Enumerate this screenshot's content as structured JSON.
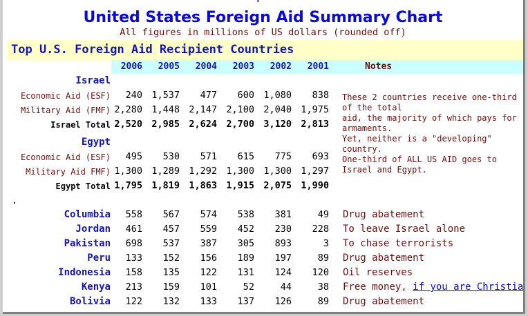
{
  "title": "United States Foreign Aid Summary Chart",
  "subtitle": "All figures in millions of US dollars (rounded off)",
  "section_title": "Top U.S. Foreign Aid Recipient Countries",
  "years": [
    "2006",
    "2005",
    "2004",
    "2003",
    "2002",
    "2001"
  ],
  "notes_header": "Notes",
  "separator": ".",
  "israel": {
    "name": "Israel",
    "rows": [
      {
        "label": "Economic Aid (ESF)",
        "values": [
          "240",
          "1,537",
          "477",
          "600",
          "1,080",
          "838"
        ],
        "total": false
      },
      {
        "label": "Military Aid (FMF)",
        "values": [
          "2,280",
          "1,448",
          "2,147",
          "2,100",
          "2,040",
          "1,975"
        ],
        "total": false
      },
      {
        "label": "Israel Total",
        "values": [
          "2,520",
          "2,985",
          "2,624",
          "2,700",
          "3,120",
          "2,813"
        ],
        "total": true
      }
    ]
  },
  "egypt": {
    "name": "Egypt",
    "rows": [
      {
        "label": "Economic Aid (ESF)",
        "values": [
          "495",
          "530",
          "571",
          "615",
          "775",
          "693"
        ],
        "total": false
      },
      {
        "label": "Military Aid FMF)",
        "values": [
          "1,300",
          "1,289",
          "1,292",
          "1,300",
          "1,300",
          "1,297"
        ],
        "total": false
      },
      {
        "label": "Egypt Total",
        "values": [
          "1,795",
          "1,819",
          "1,863",
          "1,915",
          "2,075",
          "1,990"
        ],
        "total": true
      }
    ]
  },
  "big_note": [
    " These 2 countries receive one-third of the total",
    " aid, the majority of which pays for armaments.",
    " Yet, neither is a \"developing\" country.",
    " One-third of ALL US AID goes to Israel and Egypt."
  ],
  "countries": [
    {
      "name": "Columbia",
      "values": [
        "558",
        "567",
        "574",
        "538",
        "381",
        "49"
      ],
      "note": "Drug abatement"
    },
    {
      "name": "Jordan",
      "values": [
        "461",
        "457",
        "559",
        "452",
        "230",
        "228"
      ],
      "note": "To leave Israel alone"
    },
    {
      "name": "Pakistan",
      "values": [
        "698",
        "537",
        "387",
        "305",
        "893",
        "3"
      ],
      "note": "To chase terrorists"
    },
    {
      "name": "Peru",
      "values": [
        "133",
        "152",
        "156",
        "189",
        "197",
        "89"
      ],
      "note": "Drug abatement"
    },
    {
      "name": "Indonesia",
      "values": [
        "158",
        "135",
        "122",
        "131",
        "124",
        "120"
      ],
      "note": "Oil reserves"
    },
    {
      "name": "Kenya",
      "values": [
        "213",
        "159",
        "101",
        "52",
        "44",
        "38"
      ],
      "note": "Free money, ",
      "link": "if you are Christian"
    },
    {
      "name": "Bolivia",
      "values": [
        "122",
        "132",
        "133",
        "137",
        "126",
        "89"
      ],
      "note": "Drug abatement"
    }
  ],
  "colors": {
    "title": "#0a0ad6",
    "country": "#1515b0",
    "note": "#6b0d0d",
    "section_band": "#ffffc8",
    "header_band": "#ccffff"
  }
}
